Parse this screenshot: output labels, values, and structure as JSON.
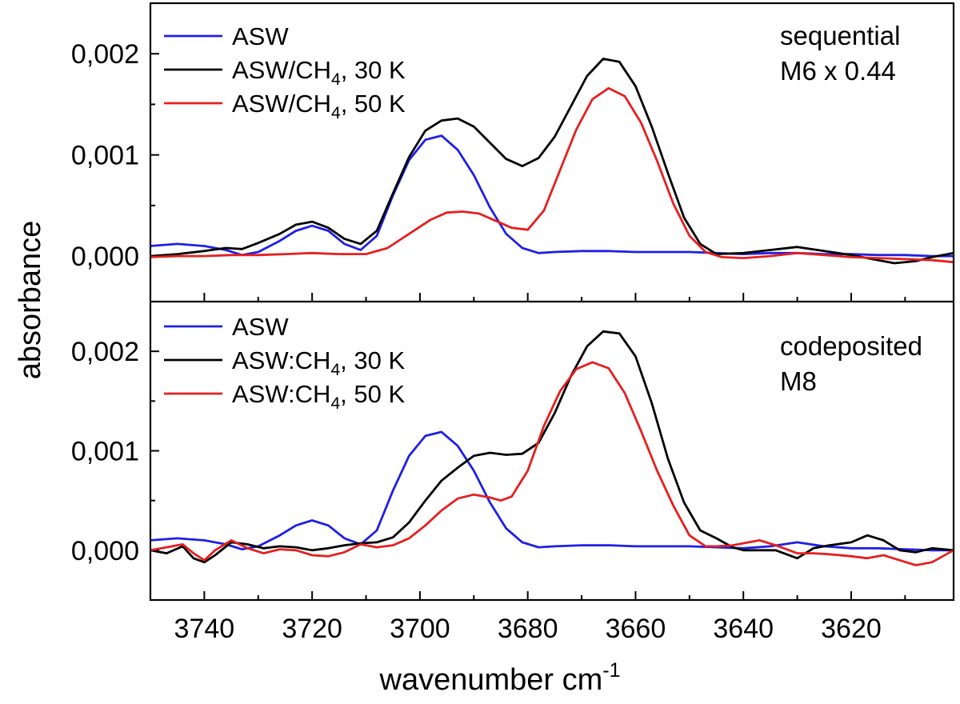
{
  "chart_data": {
    "type": "line",
    "xlabel": "wavenumber cm",
    "xlabel_sup": "-1",
    "ylabel": "absorbance",
    "xlim": [
      3750,
      3601
    ],
    "x_reversed": true,
    "x_ticks": [
      3740,
      3720,
      3700,
      3680,
      3660,
      3640,
      3620
    ],
    "grid": false,
    "panels": [
      {
        "ylim": [
          -0.00045,
          0.0025
        ],
        "y_ticks": [
          "0,000",
          "0,001",
          "0,002"
        ],
        "annotation": [
          "sequential",
          "M6 x 0.44"
        ],
        "legend": [
          {
            "main": "ASW",
            "sub": "",
            "tail": "",
            "color": "#1f1fe6"
          },
          {
            "main": "ASW/CH",
            "sub": "4",
            "tail": ", 30 K",
            "color": "#000000"
          },
          {
            "main": "ASW/CH",
            "sub": "4",
            "tail": ", 50 K",
            "color": "#e61f1f"
          }
        ],
        "series": [
          {
            "color": "#1f1fe6",
            "x": [
              3750,
              3745,
              3740,
              3736,
              3733,
              3730,
              3726,
              3723,
              3720,
              3717,
              3714,
              3711,
              3708,
              3705,
              3702,
              3699,
              3696,
              3693,
              3690,
              3687,
              3684,
              3681,
              3678,
              3675,
              3670,
              3665,
              3660,
              3655,
              3650,
              3645,
              3640,
              3635,
              3630,
              3625,
              3620,
              3615,
              3610,
              3605,
              3601
            ],
            "y": [
              0.0001,
              0.00012,
              0.0001,
              6e-05,
              1e-05,
              4e-05,
              0.00015,
              0.00025,
              0.0003,
              0.00025,
              0.00012,
              6e-05,
              0.0002,
              0.0006,
              0.00095,
              0.00115,
              0.00119,
              0.00105,
              0.0008,
              0.00048,
              0.00022,
              8e-05,
              3e-05,
              4e-05,
              5e-05,
              5e-05,
              4e-05,
              4e-05,
              4e-05,
              3e-05,
              2e-05,
              3e-05,
              3e-05,
              2e-05,
              2e-05,
              1e-05,
              1e-05,
              0.0,
              0.0
            ]
          },
          {
            "color": "#000000",
            "x": [
              3750,
              3745,
              3740,
              3736,
              3733,
              3730,
              3726,
              3723,
              3720,
              3717,
              3714,
              3711,
              3708,
              3705,
              3702,
              3699,
              3696,
              3693,
              3690,
              3687,
              3684,
              3681,
              3678,
              3675,
              3672,
              3669,
              3666,
              3663,
              3660,
              3657,
              3654,
              3651,
              3648,
              3645,
              3640,
              3635,
              3630,
              3625,
              3620,
              3615,
              3612,
              3608,
              3605,
              3601
            ],
            "y": [
              0.0,
              2e-05,
              5e-05,
              8e-05,
              7e-05,
              0.00013,
              0.00022,
              0.00031,
              0.00034,
              0.00028,
              0.00017,
              0.00012,
              0.00025,
              0.00062,
              0.00098,
              0.00124,
              0.00134,
              0.00136,
              0.00128,
              0.00112,
              0.00096,
              0.00089,
              0.00097,
              0.00118,
              0.00148,
              0.00178,
              0.00195,
              0.00192,
              0.00168,
              0.00128,
              0.00082,
              0.00038,
              0.00012,
              2e-05,
              3e-05,
              6e-05,
              9e-05,
              5e-05,
              1e-05,
              -4e-05,
              -7e-05,
              -5e-05,
              -1e-05,
              3e-05
            ]
          },
          {
            "color": "#e61f1f",
            "x": [
              3750,
              3745,
              3740,
              3735,
              3730,
              3725,
              3720,
              3715,
              3710,
              3706,
              3702,
              3698,
              3695,
              3692,
              3689,
              3686,
              3683,
              3680,
              3677,
              3674,
              3671,
              3668,
              3665,
              3662,
              3659,
              3656,
              3653,
              3650,
              3647,
              3644,
              3640,
              3635,
              3630,
              3625,
              3620,
              3615,
              3610,
              3605,
              3601
            ],
            "y": [
              -1e-05,
              0.0,
              0.0,
              1e-05,
              1e-05,
              2e-05,
              3e-05,
              2e-05,
              2e-05,
              8e-05,
              0.00022,
              0.00036,
              0.00043,
              0.00044,
              0.00042,
              0.00035,
              0.00028,
              0.00026,
              0.00045,
              0.00085,
              0.00125,
              0.00155,
              0.00166,
              0.00158,
              0.00132,
              0.00094,
              0.00052,
              0.0002,
              4e-05,
              -1e-05,
              -2e-05,
              0.0,
              3e-05,
              1e-05,
              -1e-05,
              -2e-05,
              -3e-05,
              -4e-05,
              -6e-05
            ]
          }
        ]
      },
      {
        "ylim": [
          -0.0005,
          0.0025
        ],
        "y_ticks": [
          "0,000",
          "0,001",
          "0,002"
        ],
        "annotation": [
          "codeposited",
          "M8"
        ],
        "legend": [
          {
            "main": "ASW",
            "sub": "",
            "tail": "",
            "color": "#1f1fe6"
          },
          {
            "main": "ASW:CH",
            "sub": "4",
            "tail": ", 30 K",
            "color": "#000000"
          },
          {
            "main": "ASW:CH",
            "sub": "4",
            "tail": ", 50 K",
            "color": "#e61f1f"
          }
        ],
        "series": [
          {
            "color": "#1f1fe6",
            "x": [
              3750,
              3745,
              3740,
              3736,
              3733,
              3730,
              3726,
              3723,
              3720,
              3717,
              3714,
              3711,
              3708,
              3705,
              3702,
              3699,
              3696,
              3693,
              3690,
              3687,
              3684,
              3681,
              3678,
              3675,
              3670,
              3665,
              3660,
              3655,
              3650,
              3645,
              3640,
              3635,
              3630,
              3625,
              3620,
              3615,
              3610,
              3605,
              3601
            ],
            "y": [
              0.0001,
              0.00012,
              0.0001,
              6e-05,
              1e-05,
              4e-05,
              0.00015,
              0.00025,
              0.0003,
              0.00025,
              0.00012,
              6e-05,
              0.0002,
              0.0006,
              0.00095,
              0.00115,
              0.00119,
              0.00105,
              0.0008,
              0.00048,
              0.00022,
              8e-05,
              3e-05,
              4e-05,
              5e-05,
              5e-05,
              4e-05,
              4e-05,
              4e-05,
              3e-05,
              2e-05,
              4e-05,
              8e-05,
              4e-05,
              2e-05,
              2e-05,
              1e-05,
              0.0,
              0.0
            ]
          },
          {
            "color": "#000000",
            "x": [
              3750,
              3747,
              3744,
              3742,
              3740,
              3738,
              3735,
              3732,
              3729,
              3726,
              3723,
              3720,
              3717,
              3714,
              3711,
              3708,
              3705,
              3702,
              3699,
              3696,
              3693,
              3690,
              3687,
              3684,
              3681,
              3678,
              3675,
              3672,
              3669,
              3666,
              3663,
              3660,
              3657,
              3654,
              3651,
              3648,
              3645,
              3642,
              3640,
              3637,
              3634,
              3630,
              3627,
              3624,
              3620,
              3617,
              3614,
              3611,
              3608,
              3605,
              3601
            ],
            "y": [
              0.0,
              -3e-05,
              4e-05,
              -8e-05,
              -0.00012,
              -5e-05,
              8e-05,
              6e-05,
              2e-05,
              4e-05,
              3e-05,
              0.0,
              2e-05,
              5e-05,
              7e-05,
              8e-05,
              0.00013,
              0.00028,
              0.0005,
              0.0007,
              0.00083,
              0.00095,
              0.00098,
              0.00096,
              0.00097,
              0.00108,
              0.00138,
              0.00175,
              0.00205,
              0.0022,
              0.00218,
              0.00195,
              0.00148,
              0.00092,
              0.00048,
              0.0002,
              0.00012,
              3e-05,
              0.0,
              0.0,
              0.0,
              -8e-05,
              2e-05,
              5e-05,
              8e-05,
              0.00015,
              0.0001,
              0.0,
              -2e-05,
              2e-05,
              0.0
            ]
          },
          {
            "color": "#e61f1f",
            "x": [
              3750,
              3747,
              3744,
              3742,
              3740,
              3738,
              3735,
              3732,
              3729,
              3726,
              3723,
              3720,
              3717,
              3714,
              3711,
              3708,
              3705,
              3702,
              3699,
              3696,
              3693,
              3690,
              3687,
              3685,
              3683,
              3680,
              3677,
              3674,
              3671,
              3668,
              3665,
              3662,
              3659,
              3656,
              3653,
              3650,
              3647,
              3645,
              3642,
              3640,
              3637,
              3634,
              3630,
              3627,
              3624,
              3620,
              3617,
              3614,
              3611,
              3608,
              3605,
              3601
            ],
            "y": [
              0.0,
              3e-05,
              6e-05,
              -3e-05,
              -0.0001,
              0.0,
              0.0001,
              2e-05,
              -3e-05,
              1e-05,
              0.0,
              -5e-05,
              -6e-05,
              -2e-05,
              6e-05,
              3e-05,
              5e-05,
              0.00012,
              0.00025,
              0.0004,
              0.00052,
              0.00056,
              0.00053,
              0.0005,
              0.00054,
              0.0008,
              0.00125,
              0.0016,
              0.00182,
              0.00189,
              0.00183,
              0.00158,
              0.0012,
              0.0008,
              0.00045,
              0.00015,
              4e-05,
              4e-05,
              5e-05,
              7e-05,
              0.0001,
              5e-05,
              -3e-05,
              -3e-05,
              -4e-05,
              -6e-05,
              -8e-05,
              -5e-05,
              -0.0001,
              -0.00015,
              -0.00012,
              0.0
            ]
          }
        ]
      }
    ]
  }
}
